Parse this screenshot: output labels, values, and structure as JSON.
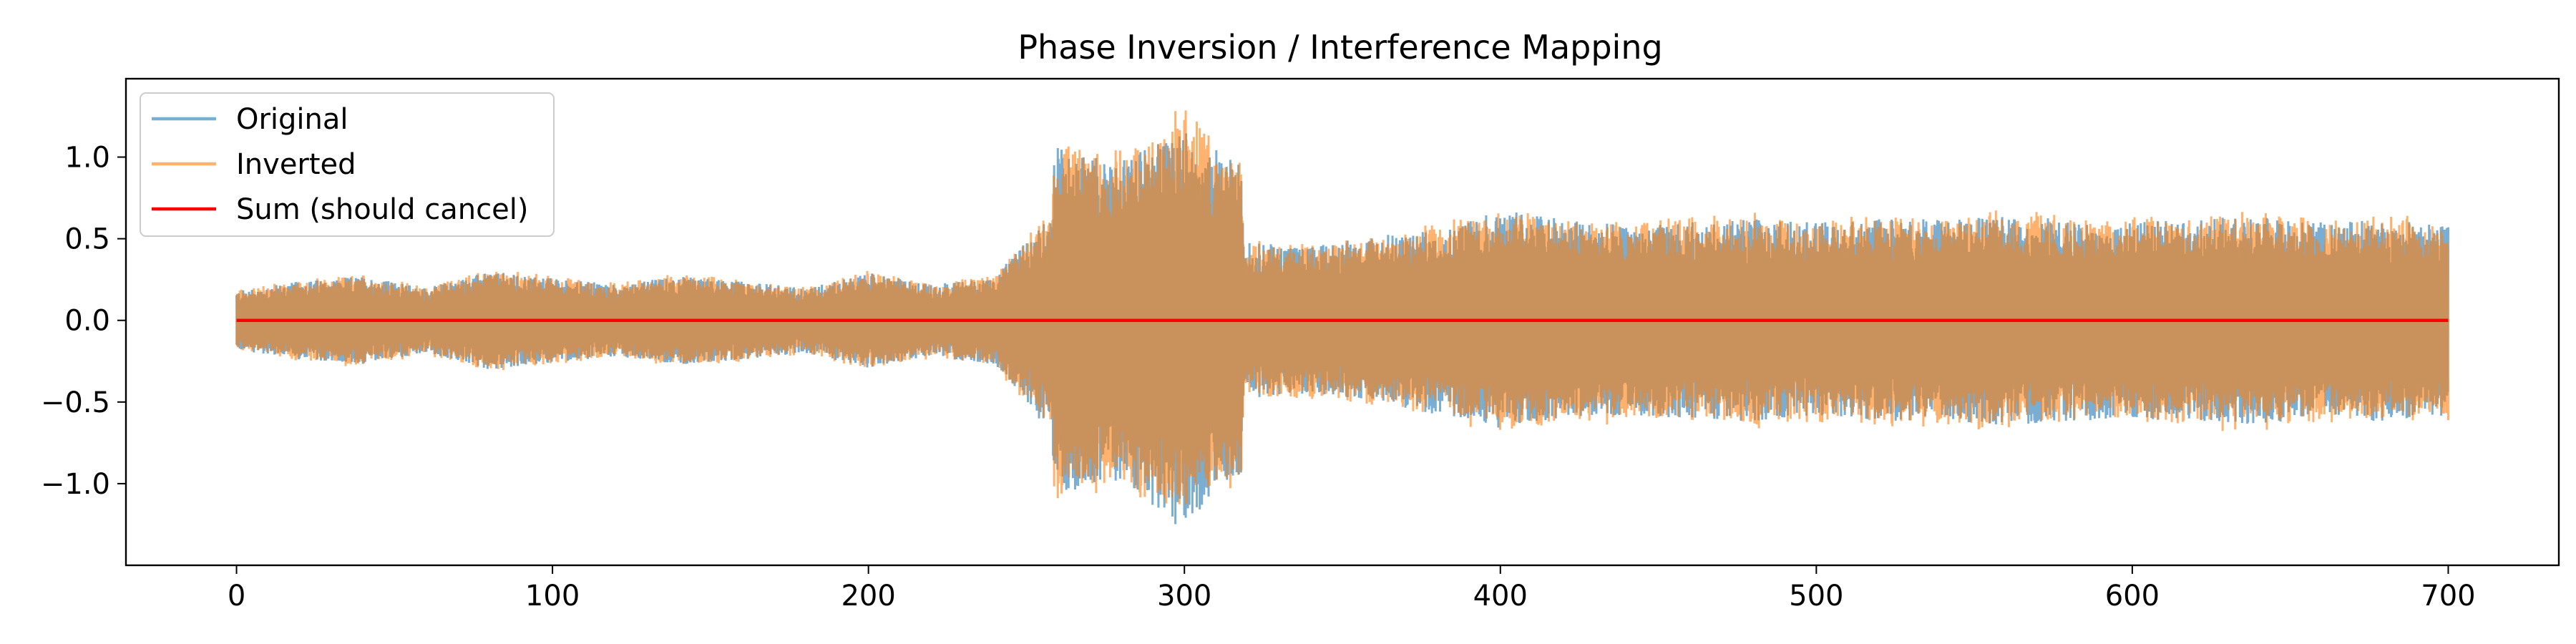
{
  "chart_data": {
    "type": "line",
    "title": "Phase Inversion / Interference Mapping",
    "xlabel": "",
    "ylabel": "",
    "xlim": [
      -35,
      735
    ],
    "ylim": [
      -1.5,
      1.48
    ],
    "x_ticks": [
      0,
      100,
      200,
      300,
      400,
      500,
      600,
      700
    ],
    "y_ticks": [
      -1.0,
      -0.5,
      0.0,
      0.5,
      1.0
    ],
    "y_tick_labels": [
      "−1.0",
      "−0.5",
      "0.0",
      "0.5",
      "1.0"
    ],
    "grid": false,
    "legend_position": "top-left",
    "series": [
      {
        "name": "Original",
        "color": "#1f77b4",
        "alpha": 0.6,
        "style": "dense oscillating signal; envelope points give upper/lower peak amplitude",
        "envelope": {
          "x": [
            0,
            20,
            40,
            60,
            80,
            100,
            120,
            140,
            160,
            180,
            200,
            220,
            240,
            258,
            259,
            262,
            280,
            300,
            306,
            310,
            318,
            319,
            340,
            360,
            380,
            400,
            420,
            440,
            460,
            480,
            500,
            520,
            540,
            560,
            580,
            600,
            620,
            640,
            660,
            680,
            700
          ],
          "upper": [
            0.18,
            0.24,
            0.27,
            0.2,
            0.3,
            0.26,
            0.22,
            0.27,
            0.24,
            0.2,
            0.29,
            0.22,
            0.27,
            0.65,
            1.1,
            1.05,
            0.98,
            1.2,
            1.0,
            1.05,
            0.95,
            0.48,
            0.45,
            0.52,
            0.55,
            0.68,
            0.62,
            0.58,
            0.6,
            0.62,
            0.6,
            0.62,
            0.62,
            0.64,
            0.62,
            0.6,
            0.62,
            0.64,
            0.6,
            0.62,
            0.58
          ],
          "lower": [
            -0.18,
            -0.24,
            -0.27,
            -0.2,
            -0.3,
            -0.26,
            -0.22,
            -0.27,
            -0.24,
            -0.2,
            -0.29,
            -0.22,
            -0.27,
            -0.72,
            -1.1,
            -1.05,
            -0.98,
            -1.3,
            -1.15,
            -1.0,
            -0.95,
            -0.48,
            -0.45,
            -0.5,
            -0.58,
            -0.66,
            -0.6,
            -0.58,
            -0.6,
            -0.62,
            -0.58,
            -0.62,
            -0.62,
            -0.64,
            -0.62,
            -0.6,
            -0.62,
            -0.64,
            -0.6,
            -0.62,
            -0.58
          ]
        }
      },
      {
        "name": "Inverted",
        "color": "#ff7f0e",
        "alpha": 0.6,
        "style": "mirror (negation) of Original"
      },
      {
        "name": "Sum (should cancel)",
        "color": "#ff0000",
        "x": [
          0,
          700
        ],
        "y": [
          0,
          0
        ]
      }
    ]
  }
}
